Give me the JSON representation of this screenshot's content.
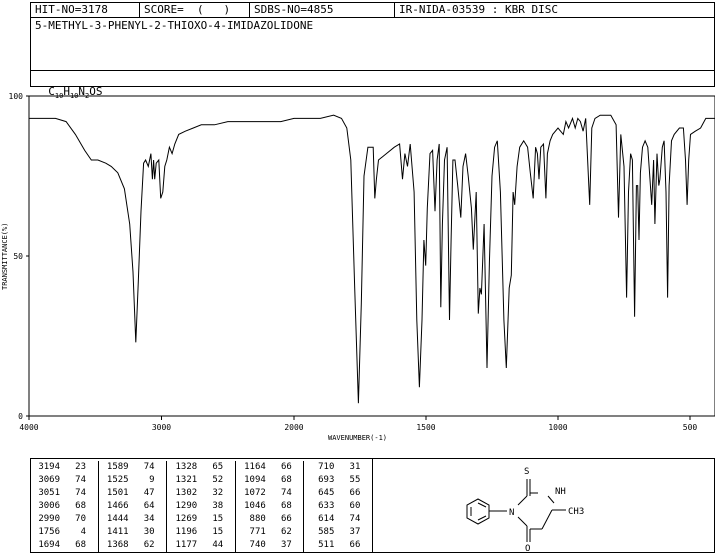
{
  "header": {
    "hit_no": "HIT-NO=3178",
    "score": "SCORE=  (   )",
    "sdbs_no": "SDBS-NO=4855",
    "ir_id": "IR-NIDA-03539 : KBR DISC",
    "compound_name": "5-METHYL-3-PHENYL-2-THIOXO-4-IMIDAZOLIDONE",
    "formula_parts": [
      "C",
      "10",
      "H",
      "10",
      "N",
      "2",
      "OS"
    ]
  },
  "chart_data": {
    "type": "line",
    "xlabel": "WAVENUMBER(-1)",
    "ylabel": "TRANSMITTANCE(%)",
    "xlim": [
      4000,
      400
    ],
    "ylim": [
      0,
      100
    ],
    "x_ticks": [
      "4000",
      "3000",
      "2000",
      "1500",
      "1000",
      "500"
    ],
    "y_ticks": [
      "0",
      "50",
      "100"
    ],
    "points": [
      [
        4000,
        93
      ],
      [
        3800,
        93
      ],
      [
        3720,
        92
      ],
      [
        3650,
        88
      ],
      [
        3580,
        83
      ],
      [
        3530,
        80
      ],
      [
        3480,
        80
      ],
      [
        3420,
        79
      ],
      [
        3380,
        78
      ],
      [
        3330,
        76
      ],
      [
        3280,
        71
      ],
      [
        3240,
        60
      ],
      [
        3215,
        45
      ],
      [
        3194,
        23
      ],
      [
        3175,
        42
      ],
      [
        3155,
        64
      ],
      [
        3135,
        79
      ],
      [
        3120,
        80
      ],
      [
        3100,
        78
      ],
      [
        3080,
        82
      ],
      [
        3069,
        74
      ],
      [
        3060,
        80
      ],
      [
        3051,
        74
      ],
      [
        3040,
        79
      ],
      [
        3020,
        80
      ],
      [
        3006,
        68
      ],
      [
        2990,
        70
      ],
      [
        2975,
        78
      ],
      [
        2960,
        80
      ],
      [
        2940,
        84
      ],
      [
        2920,
        82
      ],
      [
        2900,
        85
      ],
      [
        2870,
        88
      ],
      [
        2820,
        89
      ],
      [
        2760,
        90
      ],
      [
        2700,
        91
      ],
      [
        2600,
        91
      ],
      [
        2500,
        92
      ],
      [
        2400,
        92
      ],
      [
        2300,
        92
      ],
      [
        2200,
        92
      ],
      [
        2100,
        92
      ],
      [
        2000,
        93
      ],
      [
        1950,
        93
      ],
      [
        1900,
        93
      ],
      [
        1850,
        94
      ],
      [
        1820,
        93
      ],
      [
        1800,
        90
      ],
      [
        1785,
        80
      ],
      [
        1770,
        40
      ],
      [
        1756,
        4
      ],
      [
        1745,
        35
      ],
      [
        1735,
        75
      ],
      [
        1720,
        84
      ],
      [
        1700,
        84
      ],
      [
        1694,
        68
      ],
      [
        1688,
        74
      ],
      [
        1680,
        80
      ],
      [
        1650,
        82
      ],
      [
        1620,
        84
      ],
      [
        1600,
        85
      ],
      [
        1589,
        74
      ],
      [
        1580,
        82
      ],
      [
        1570,
        78
      ],
      [
        1560,
        85
      ],
      [
        1545,
        70
      ],
      [
        1535,
        30
      ],
      [
        1525,
        9
      ],
      [
        1515,
        30
      ],
      [
        1508,
        55
      ],
      [
        1501,
        47
      ],
      [
        1495,
        65
      ],
      [
        1485,
        82
      ],
      [
        1475,
        83
      ],
      [
        1466,
        64
      ],
      [
        1458,
        80
      ],
      [
        1450,
        85
      ],
      [
        1444,
        34
      ],
      [
        1438,
        60
      ],
      [
        1430,
        80
      ],
      [
        1420,
        84
      ],
      [
        1411,
        30
      ],
      [
        1405,
        55
      ],
      [
        1398,
        80
      ],
      [
        1390,
        80
      ],
      [
        1380,
        72
      ],
      [
        1368,
        62
      ],
      [
        1360,
        78
      ],
      [
        1350,
        82
      ],
      [
        1340,
        75
      ],
      [
        1328,
        65
      ],
      [
        1321,
        52
      ],
      [
        1310,
        70
      ],
      [
        1302,
        32
      ],
      [
        1296,
        40
      ],
      [
        1290,
        38
      ],
      [
        1280,
        60
      ],
      [
        1275,
        40
      ],
      [
        1269,
        15
      ],
      [
        1260,
        48
      ],
      [
        1250,
        75
      ],
      [
        1240,
        84
      ],
      [
        1230,
        86
      ],
      [
        1218,
        70
      ],
      [
        1205,
        30
      ],
      [
        1196,
        15
      ],
      [
        1185,
        40
      ],
      [
        1177,
        44
      ],
      [
        1170,
        70
      ],
      [
        1164,
        66
      ],
      [
        1155,
        78
      ],
      [
        1145,
        84
      ],
      [
        1130,
        86
      ],
      [
        1115,
        84
      ],
      [
        1105,
        76
      ],
      [
        1094,
        68
      ],
      [
        1085,
        84
      ],
      [
        1078,
        82
      ],
      [
        1072,
        74
      ],
      [
        1065,
        84
      ],
      [
        1055,
        85
      ],
      [
        1046,
        68
      ],
      [
        1040,
        82
      ],
      [
        1030,
        86
      ],
      [
        1020,
        88
      ],
      [
        1000,
        90
      ],
      [
        990,
        89
      ],
      [
        980,
        88
      ],
      [
        970,
        92
      ],
      [
        960,
        90
      ],
      [
        945,
        93
      ],
      [
        935,
        90
      ],
      [
        925,
        93
      ],
      [
        915,
        92
      ],
      [
        905,
        89
      ],
      [
        895,
        93
      ],
      [
        880,
        66
      ],
      [
        872,
        90
      ],
      [
        860,
        93
      ],
      [
        840,
        94
      ],
      [
        800,
        94
      ],
      [
        780,
        91
      ],
      [
        771,
        62
      ],
      [
        762,
        88
      ],
      [
        750,
        78
      ],
      [
        740,
        37
      ],
      [
        733,
        70
      ],
      [
        725,
        82
      ],
      [
        718,
        80
      ],
      [
        710,
        31
      ],
      [
        703,
        72
      ],
      [
        698,
        72
      ],
      [
        693,
        55
      ],
      [
        688,
        76
      ],
      [
        680,
        84
      ],
      [
        670,
        86
      ],
      [
        660,
        84
      ],
      [
        645,
        66
      ],
      [
        638,
        80
      ],
      [
        633,
        60
      ],
      [
        625,
        82
      ],
      [
        618,
        72
      ],
      [
        614,
        74
      ],
      [
        605,
        84
      ],
      [
        598,
        86
      ],
      [
        591,
        70
      ],
      [
        585,
        37
      ],
      [
        579,
        72
      ],
      [
        570,
        86
      ],
      [
        560,
        88
      ],
      [
        540,
        90
      ],
      [
        525,
        90
      ],
      [
        517,
        80
      ],
      [
        511,
        66
      ],
      [
        505,
        80
      ],
      [
        498,
        88
      ],
      [
        480,
        89
      ],
      [
        460,
        90
      ],
      [
        440,
        93
      ],
      [
        420,
        93
      ],
      [
        400,
        93
      ]
    ],
    "peak_table": [
      [
        "3194",
        "23"
      ],
      [
        "3069",
        "74"
      ],
      [
        "3051",
        "74"
      ],
      [
        "3006",
        "68"
      ],
      [
        "2990",
        "70"
      ],
      [
        "1756",
        "4"
      ],
      [
        "1694",
        "68"
      ],
      [
        "1589",
        "74"
      ],
      [
        "1525",
        "9"
      ],
      [
        "1501",
        "47"
      ],
      [
        "1466",
        "64"
      ],
      [
        "1444",
        "34"
      ],
      [
        "1411",
        "30"
      ],
      [
        "1368",
        "62"
      ],
      [
        "1328",
        "65"
      ],
      [
        "1321",
        "52"
      ],
      [
        "1302",
        "32"
      ],
      [
        "1290",
        "38"
      ],
      [
        "1269",
        "15"
      ],
      [
        "1196",
        "15"
      ],
      [
        "1177",
        "44"
      ],
      [
        "1164",
        "66"
      ],
      [
        "1094",
        "68"
      ],
      [
        "1072",
        "74"
      ],
      [
        "1046",
        "68"
      ],
      [
        "880",
        "66"
      ],
      [
        "771",
        "62"
      ],
      [
        "740",
        "37"
      ],
      [
        "710",
        "31"
      ],
      [
        "693",
        "55"
      ],
      [
        "645",
        "66"
      ],
      [
        "633",
        "60"
      ],
      [
        "614",
        "74"
      ],
      [
        "585",
        "37"
      ],
      [
        "511",
        "66"
      ]
    ]
  },
  "structure": {
    "labels": [
      "S",
      "NH",
      "N",
      "CH3",
      "O"
    ]
  }
}
